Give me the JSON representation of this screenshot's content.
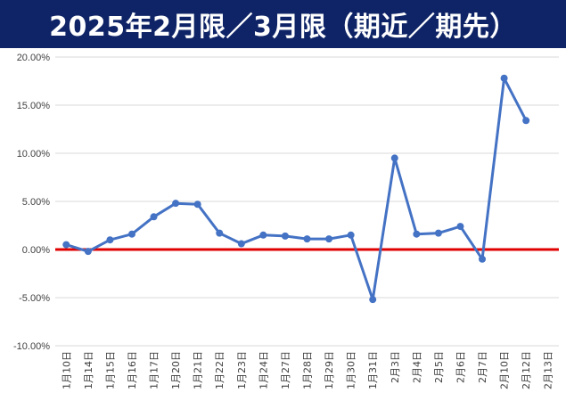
{
  "title": "2025年2月限／3月限（期近／期先）",
  "chart_data": {
    "type": "line",
    "title": "2025年2月限／3月限（期近／期先）",
    "xlabel": "",
    "ylabel": "",
    "categories": [
      "1月10日",
      "1月14日",
      "1月15日",
      "1月16日",
      "1月17日",
      "1月20日",
      "1月21日",
      "1月22日",
      "1月23日",
      "1月24日",
      "1月27日",
      "1月28日",
      "1月29日",
      "1月30日",
      "1月31日",
      "2月3日",
      "2月4日",
      "2月5日",
      "2月6日",
      "2月7日",
      "2月10日",
      "2月12日",
      "2月13日"
    ],
    "values": [
      0.5,
      -0.2,
      1.0,
      1.6,
      3.4,
      4.8,
      4.7,
      1.7,
      0.6,
      1.5,
      1.4,
      1.1,
      1.1,
      1.5,
      -5.2,
      9.5,
      1.6,
      1.7,
      2.4,
      -1.0,
      17.8,
      13.4,
      null
    ],
    "yticks": [
      "20.00%",
      "15.00%",
      "10.00%",
      "5.00%",
      "0.00%",
      "-5.00%",
      "-10.00%"
    ],
    "ylim": [
      -10,
      20
    ],
    "grid": true,
    "legend": "none",
    "zero_line": true,
    "colors": {
      "line": "#4472c4",
      "zero_line": "#e00000",
      "grid": "#d9d9d9",
      "title_bar": "#0f2466"
    }
  }
}
